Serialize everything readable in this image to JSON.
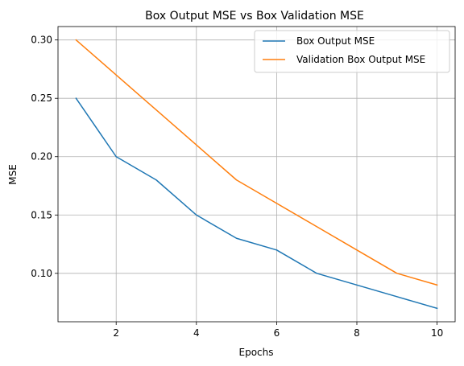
{
  "chart_data": {
    "type": "line",
    "title": "Box Output MSE vs Box Validation MSE",
    "xlabel": "Epochs",
    "ylabel": "MSE",
    "x": [
      1,
      2,
      3,
      4,
      5,
      6,
      7,
      8,
      9,
      10
    ],
    "series": [
      {
        "name": "Box Output MSE",
        "color": "#1f77b4",
        "values": [
          0.25,
          0.2,
          0.18,
          0.15,
          0.13,
          0.12,
          0.1,
          0.09,
          0.08,
          0.07
        ]
      },
      {
        "name": "Validation Box Output MSE",
        "color": "#ff7f0e",
        "values": [
          0.3,
          0.27,
          0.24,
          0.21,
          0.18,
          0.16,
          0.14,
          0.12,
          0.1,
          0.09
        ]
      }
    ],
    "xlim": [
      0.55,
      10.45
    ],
    "ylim": [
      0.0585,
      0.3115
    ],
    "xticks": [
      2,
      4,
      6,
      8,
      10
    ],
    "xtick_labels": [
      "2",
      "4",
      "6",
      "8",
      "10"
    ],
    "yticks": [
      0.1,
      0.15,
      0.2,
      0.25,
      0.3
    ],
    "ytick_labels": [
      "0.10",
      "0.15",
      "0.20",
      "0.25",
      "0.30"
    ],
    "grid": true,
    "legend_position": "top-right"
  }
}
